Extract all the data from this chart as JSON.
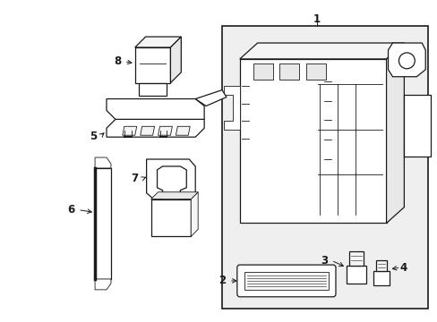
{
  "bg_color": "#ffffff",
  "line_color": "#1a1a1a",
  "fill_white": "#ffffff",
  "fill_light": "#f5f5f5",
  "fill_gray": "#e8e8e8",
  "figsize": [
    4.89,
    3.6
  ],
  "dpi": 100
}
